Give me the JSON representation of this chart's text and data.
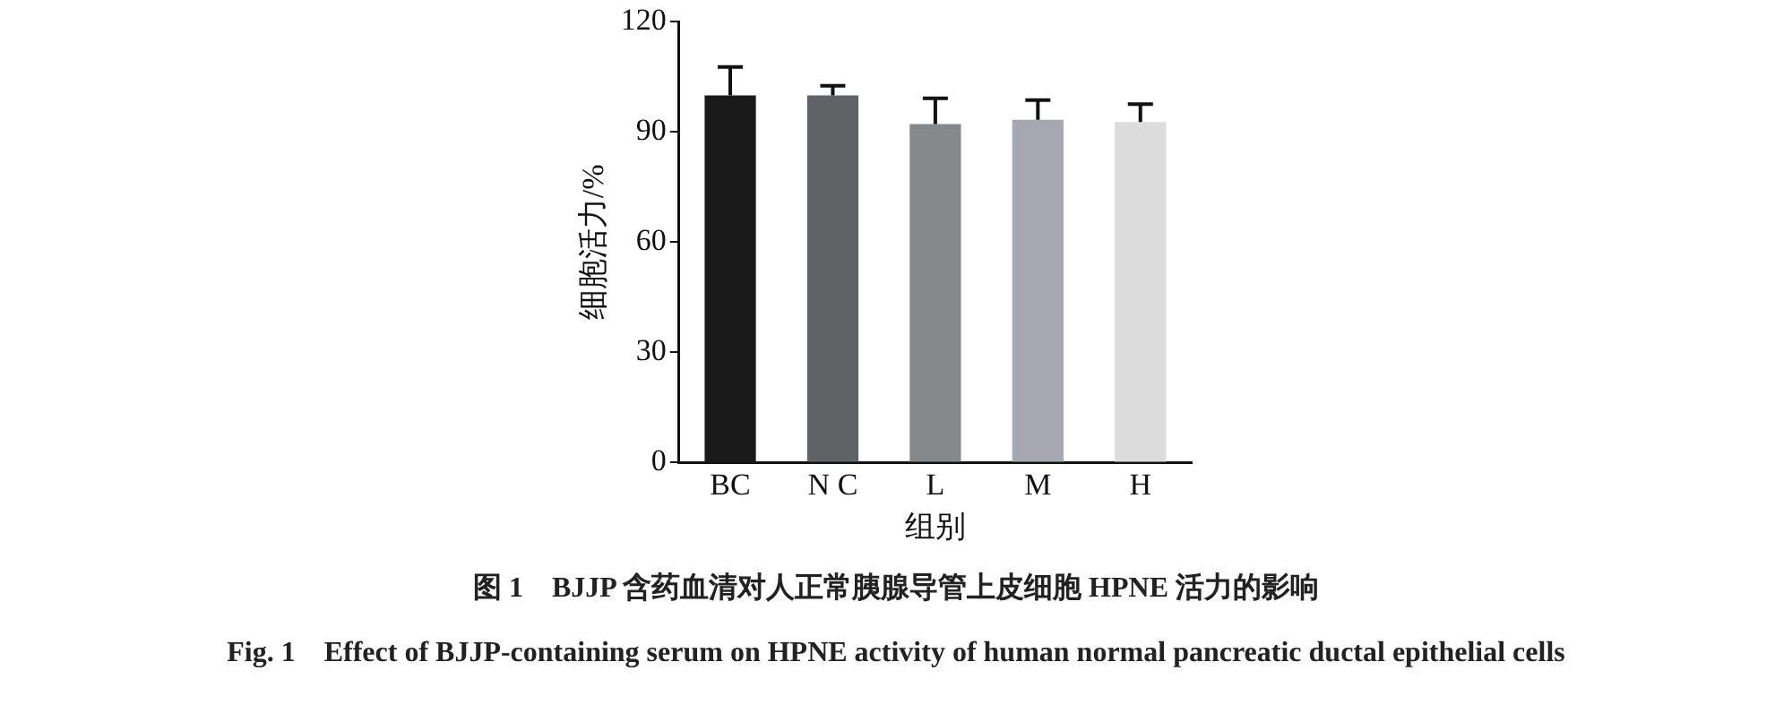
{
  "chart_data": {
    "type": "bar",
    "xlabel": "组别",
    "ylabel": "细胞活力/%",
    "categories": [
      "BC",
      "N C",
      "L",
      "M",
      "H"
    ],
    "values": [
      100,
      100,
      92.2,
      93.3,
      92.7
    ],
    "errors": [
      7.7,
      2.6,
      7,
      5.4,
      4.9
    ],
    "colors": [
      "#1a1a1a",
      "#5f6366",
      "#85898c",
      "#a6a7b0",
      "#dcdcdc"
    ],
    "ylim": [
      0,
      120
    ],
    "yticks": [
      0,
      30,
      60,
      90,
      120
    ],
    "grid": false,
    "legend": false,
    "annotations": [
      "图 1　BJJP 含药血清对人正常胰腺导管上皮细胞 HPNE 活力的影响",
      "Fig. 1　Effect of BJJP-containing serum on HPNE activity of human normal pancreatic ductal epithelial cells"
    ]
  }
}
